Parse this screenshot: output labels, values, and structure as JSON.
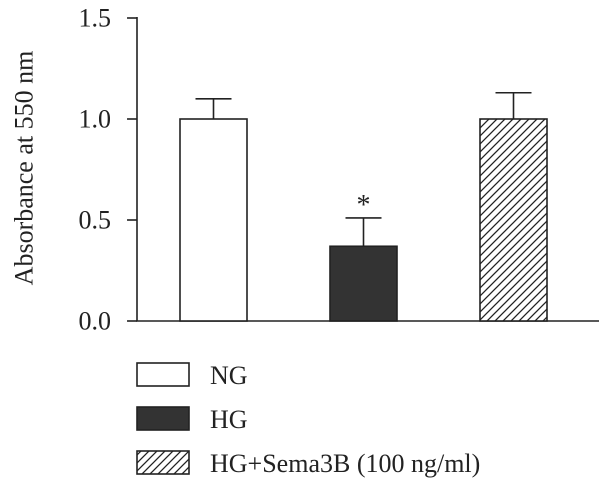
{
  "chart_data": {
    "type": "bar",
    "categories": [
      "NG",
      "HG",
      "HG+Sema3B (100 ng/ml)"
    ],
    "values": [
      1.0,
      0.37,
      1.0
    ],
    "error_upper": [
      0.1,
      0.14,
      0.13
    ],
    "fills": [
      "#ffffff",
      "#333333",
      "hatch"
    ],
    "annotations": [
      {
        "category": "HG",
        "text": "*"
      }
    ],
    "ylabel": "Absorbance at 550 nm",
    "ylim": [
      0,
      1.5
    ],
    "yticks": [
      0,
      0.5,
      1.0,
      1.5
    ],
    "ytick_labels": [
      "0.0",
      "0.5",
      "1.0",
      "1.5"
    ],
    "grid": false,
    "legend_position": "bottom-left"
  }
}
